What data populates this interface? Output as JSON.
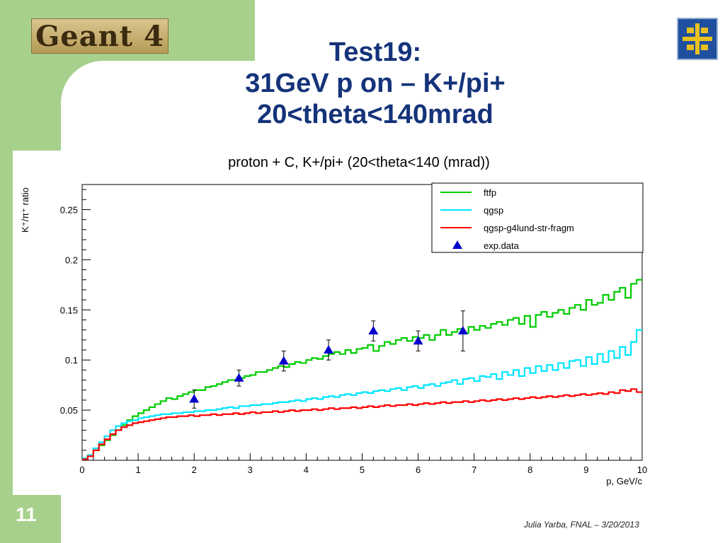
{
  "slide": {
    "logo_text": "Geant 4",
    "title_lines": [
      "Test19:",
      "31GeV p on – K+/pi+",
      "20<theta<140mrad"
    ],
    "slide_number": "11",
    "footer": "Julia Yarba, FNAL – 3/20/2013",
    "colors": {
      "green_band": "#a8d08d",
      "title": "#14337a"
    },
    "fnal_logo_icon": "fermilab-logo-icon"
  },
  "chart_data": {
    "type": "line",
    "title": "proton + C, K+/pi+ (20<theta<140 (mrad))",
    "xlabel": "p, GeV/c",
    "ylabel": "K⁺/π⁺ ratio",
    "xlim": [
      0,
      10
    ],
    "ylim": [
      0,
      0.275
    ],
    "x_ticks": [
      "0",
      "1",
      "2",
      "3",
      "4",
      "5",
      "6",
      "7",
      "8",
      "9",
      "10"
    ],
    "y_ticks": [
      "0.05",
      "0.1",
      "0.15",
      "0.2",
      "0.25"
    ],
    "legend_position": "top-right",
    "bin_width": 0.1,
    "series": [
      {
        "name": "ftfp",
        "color": "#00cc00",
        "step_values": [
          0.002,
          0.005,
          0.01,
          0.015,
          0.02,
          0.025,
          0.03,
          0.035,
          0.04,
          0.044,
          0.047,
          0.05,
          0.053,
          0.056,
          0.059,
          0.062,
          0.061,
          0.064,
          0.066,
          0.068,
          0.07,
          0.07,
          0.073,
          0.074,
          0.076,
          0.078,
          0.08,
          0.08,
          0.082,
          0.084,
          0.085,
          0.088,
          0.088,
          0.09,
          0.092,
          0.094,
          0.093,
          0.096,
          0.098,
          0.097,
          0.1,
          0.102,
          0.101,
          0.104,
          0.106,
          0.108,
          0.106,
          0.11,
          0.107,
          0.111,
          0.112,
          0.115,
          0.109,
          0.114,
          0.118,
          0.116,
          0.12,
          0.122,
          0.119,
          0.123,
          0.122,
          0.125,
          0.12,
          0.125,
          0.13,
          0.125,
          0.128,
          0.131,
          0.127,
          0.133,
          0.13,
          0.134,
          0.132,
          0.136,
          0.138,
          0.135,
          0.14,
          0.142,
          0.136,
          0.144,
          0.133,
          0.145,
          0.148,
          0.143,
          0.147,
          0.15,
          0.146,
          0.152,
          0.155,
          0.15,
          0.16,
          0.155,
          0.157,
          0.165,
          0.16,
          0.168,
          0.172,
          0.162,
          0.176,
          0.18
        ]
      },
      {
        "name": "qgsp",
        "color": "#00e5ff",
        "step_values": [
          0.002,
          0.005,
          0.012,
          0.018,
          0.024,
          0.03,
          0.034,
          0.037,
          0.039,
          0.04,
          0.042,
          0.043,
          0.044,
          0.045,
          0.046,
          0.046,
          0.047,
          0.047,
          0.048,
          0.048,
          0.049,
          0.049,
          0.05,
          0.05,
          0.051,
          0.052,
          0.053,
          0.052,
          0.054,
          0.054,
          0.055,
          0.055,
          0.056,
          0.056,
          0.057,
          0.058,
          0.058,
          0.059,
          0.06,
          0.059,
          0.061,
          0.062,
          0.061,
          0.063,
          0.064,
          0.063,
          0.065,
          0.066,
          0.065,
          0.067,
          0.068,
          0.067,
          0.069,
          0.07,
          0.069,
          0.071,
          0.072,
          0.07,
          0.073,
          0.074,
          0.072,
          0.075,
          0.076,
          0.074,
          0.077,
          0.078,
          0.08,
          0.076,
          0.081,
          0.082,
          0.079,
          0.084,
          0.083,
          0.086,
          0.081,
          0.088,
          0.085,
          0.09,
          0.084,
          0.092,
          0.087,
          0.094,
          0.089,
          0.095,
          0.09,
          0.097,
          0.092,
          0.099,
          0.1,
          0.094,
          0.103,
          0.096,
          0.106,
          0.098,
          0.109,
          0.102,
          0.113,
          0.105,
          0.118,
          0.13
        ]
      },
      {
        "name": "qgsp-g4lund-str-fragm",
        "color": "#ff0000",
        "step_values": [
          0.001,
          0.004,
          0.01,
          0.016,
          0.021,
          0.026,
          0.03,
          0.033,
          0.035,
          0.037,
          0.038,
          0.039,
          0.04,
          0.041,
          0.042,
          0.043,
          0.043,
          0.044,
          0.044,
          0.045,
          0.044,
          0.045,
          0.045,
          0.046,
          0.045,
          0.046,
          0.046,
          0.047,
          0.046,
          0.047,
          0.048,
          0.047,
          0.048,
          0.048,
          0.049,
          0.048,
          0.049,
          0.05,
          0.049,
          0.05,
          0.05,
          0.051,
          0.05,
          0.051,
          0.052,
          0.051,
          0.052,
          0.052,
          0.053,
          0.052,
          0.053,
          0.054,
          0.053,
          0.054,
          0.055,
          0.054,
          0.055,
          0.055,
          0.056,
          0.055,
          0.056,
          0.057,
          0.056,
          0.057,
          0.058,
          0.057,
          0.058,
          0.058,
          0.059,
          0.058,
          0.059,
          0.06,
          0.059,
          0.06,
          0.061,
          0.06,
          0.061,
          0.062,
          0.061,
          0.062,
          0.063,
          0.062,
          0.063,
          0.064,
          0.063,
          0.064,
          0.065,
          0.064,
          0.065,
          0.066,
          0.065,
          0.066,
          0.067,
          0.066,
          0.068,
          0.067,
          0.07,
          0.069,
          0.071,
          0.068
        ]
      }
    ],
    "points": {
      "name": "exp.data",
      "color": "#0000cc",
      "x": [
        2.0,
        2.8,
        3.6,
        4.4,
        5.2,
        6.0,
        6.8
      ],
      "y": [
        0.061,
        0.082,
        0.099,
        0.11,
        0.129,
        0.119,
        0.129
      ],
      "yerr": [
        0.009,
        0.008,
        0.01,
        0.01,
        0.01,
        0.01,
        0.02
      ]
    }
  }
}
